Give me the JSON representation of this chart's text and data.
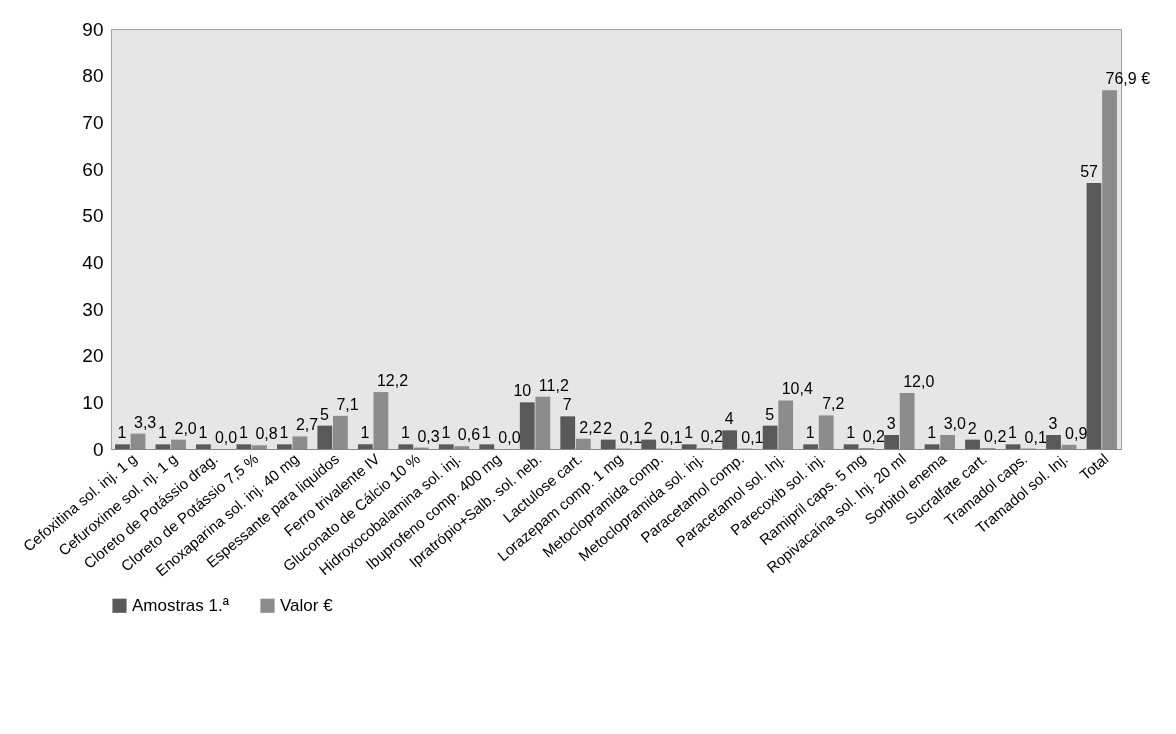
{
  "chart_data": {
    "type": "bar",
    "categories": [
      "Cefoxitina sol. inj. 1 g",
      "Cefuroxime sol. nj. 1 g",
      "Cloreto de Potássio drag.",
      "Cloreto de Potássio 7,5 %",
      "Enoxaparina sol. inj. 40 mg",
      "Espessante para liquidos",
      "Ferro trivalente IV",
      "Gluconato de Cálcio 10 %",
      "Hidroxocobalamina sol. inj.",
      "Ibuprofeno comp. 400 mg",
      "Ipratrópio+Salb. sol. neb.",
      "Lactulose cart.",
      "Lorazepam comp. 1 mg",
      "Metoclopramida comp.",
      "Metoclopramida sol. inj.",
      "Paracetamol comp.",
      "Paracetamol sol. Inj.",
      "Parecoxib sol. inj.",
      "Ramipril caps. 5 mg",
      "Ropivacaína sol. Inj.  20 ml",
      "Sorbitol enema",
      "Sucralfate cart.",
      "Tramadol caps.",
      "Tramadol sol. Inj.",
      "Total"
    ],
    "series": [
      {
        "name": "Amostras 1.ª",
        "color": "#595959",
        "values": [
          1,
          1,
          1,
          1,
          1,
          5,
          1,
          1,
          1,
          1,
          10,
          7,
          2,
          2,
          1,
          4,
          5,
          1,
          1,
          3,
          1,
          2,
          1,
          3,
          57
        ],
        "value_labels": [
          "1",
          "1",
          "1",
          "1",
          "1",
          "5",
          "1",
          "1",
          "1",
          "1",
          "10",
          "7",
          "2",
          "2",
          "1",
          "4",
          "5",
          "1",
          "1",
          "3",
          "1",
          "2",
          "1",
          "3",
          "57"
        ]
      },
      {
        "name": "Valor €",
        "color": "#8c8c8c",
        "values": [
          3.3,
          2.0,
          0.0,
          0.8,
          2.7,
          7.1,
          12.2,
          0.3,
          0.6,
          0.0,
          11.2,
          2.2,
          0.1,
          0.1,
          0.2,
          0.1,
          10.4,
          7.2,
          0.2,
          12.0,
          3.0,
          0.2,
          0.1,
          0.9,
          76.9
        ],
        "value_labels": [
          "3,3",
          "2,0",
          "0,0",
          "0,8",
          "2,7",
          "7,1",
          "12,2",
          "0,3",
          "0,6",
          "0,0",
          "11,2",
          "2,2",
          "0,1",
          "0,1",
          "0,2",
          "0,1",
          "10,4",
          "7,2",
          "0,2",
          "12,0",
          "3,0",
          "0,2",
          "0,1",
          "0,9",
          "76,9 €"
        ]
      }
    ],
    "ylim": [
      0,
      90
    ],
    "yticks": [
      0,
      10,
      20,
      30,
      40,
      50,
      60,
      70,
      80,
      90
    ],
    "legend": "bottom"
  }
}
